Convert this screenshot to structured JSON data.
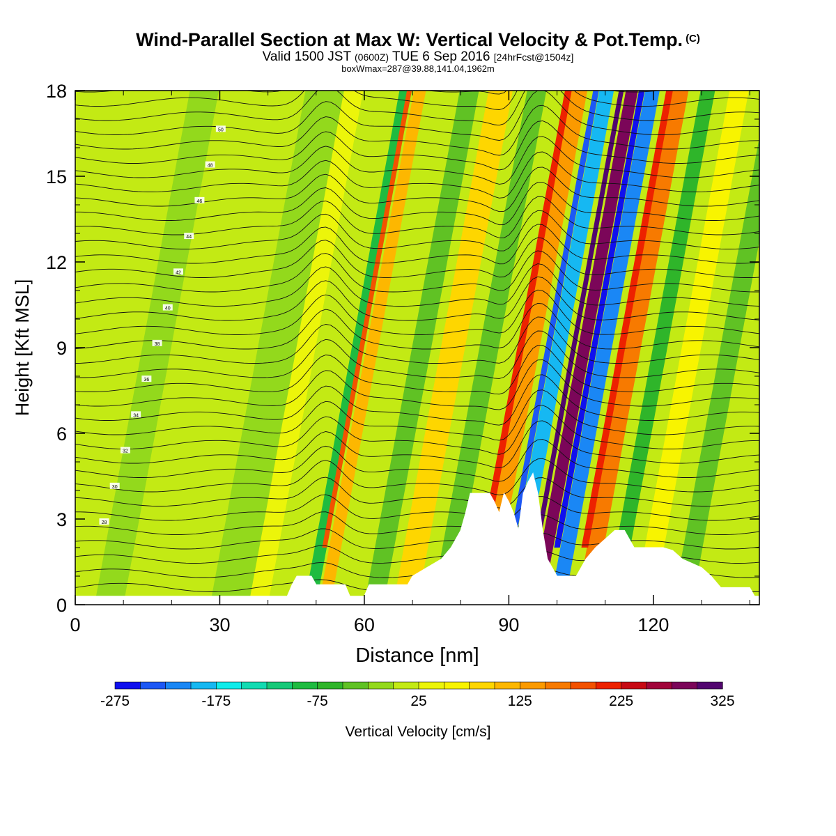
{
  "title": {
    "main": "Wind-Parallel Section at Max W: Vertical Velocity & Pot.Temp.",
    "copyright": "(C)",
    "valid_prefix": "Valid 1500 JST",
    "zulu": "(0600Z)",
    "valid_date": "TUE 6 Sep 2016",
    "forecast": "[24hrFcst@1504z]",
    "box": "boxWmax=287@39.88,141.04,1962m"
  },
  "chart_data": {
    "type": "heatmap",
    "xlabel": "Distance [nm]",
    "ylabel": "Height [Kft MSL]",
    "xlim": [
      0,
      142
    ],
    "ylim": [
      0,
      18
    ],
    "x_ticks": [
      "0",
      "30",
      "60",
      "90",
      "120"
    ],
    "y_ticks": [
      "0",
      "3",
      "6",
      "9",
      "12",
      "15",
      "18"
    ],
    "colorbar": {
      "label": "Vertical Velocity [cm/s]",
      "min": -275,
      "max": 325,
      "step": 25,
      "tick_labels": [
        "-275",
        "-175",
        "-75",
        "25",
        "125",
        "225",
        "325"
      ],
      "colors": [
        "#1010ee",
        "#1d58f5",
        "#1a87f5",
        "#16b8f2",
        "#10ecea",
        "#12dbb2",
        "#17c978",
        "#1fbb40",
        "#2fb52a",
        "#60c224",
        "#93d91c",
        "#c3ea14",
        "#ecf50a",
        "#f8f400",
        "#fed600",
        "#fdb700",
        "#fb9a00",
        "#f77a00",
        "#f35200",
        "#ed2200",
        "#c70a14",
        "#a1053a",
        "#7b0659",
        "#52066f"
      ]
    },
    "terrain_kft": [
      [
        0,
        0.3
      ],
      [
        44,
        0.3
      ],
      [
        45,
        0.7
      ],
      [
        46,
        1.0
      ],
      [
        49,
        1.0
      ],
      [
        50,
        0.7
      ],
      [
        56,
        0.7
      ],
      [
        57,
        0.3
      ],
      [
        60,
        0.3
      ],
      [
        61,
        0.7
      ],
      [
        69,
        0.7
      ],
      [
        70,
        1.0
      ],
      [
        73,
        1.3
      ],
      [
        76,
        1.6
      ],
      [
        78,
        2.0
      ],
      [
        80,
        2.6
      ],
      [
        81,
        3.2
      ],
      [
        82,
        3.9
      ],
      [
        86,
        3.9
      ],
      [
        87,
        3.6
      ],
      [
        88,
        3.2
      ],
      [
        89,
        3.9
      ],
      [
        90,
        3.6
      ],
      [
        91,
        3.2
      ],
      [
        92,
        2.6
      ],
      [
        93,
        3.9
      ],
      [
        94,
        4.3
      ],
      [
        95,
        4.6
      ],
      [
        96,
        3.9
      ],
      [
        97,
        2.6
      ],
      [
        98,
        1.6
      ],
      [
        99,
        1.3
      ],
      [
        100,
        1.0
      ],
      [
        104,
        1.0
      ],
      [
        105,
        1.3
      ],
      [
        106,
        1.6
      ],
      [
        108,
        2.0
      ],
      [
        110,
        2.3
      ],
      [
        112,
        2.6
      ],
      [
        114,
        2.6
      ],
      [
        115,
        2.3
      ],
      [
        116,
        2.0
      ],
      [
        122,
        2.0
      ],
      [
        124,
        1.9
      ],
      [
        126,
        1.6
      ],
      [
        130,
        1.3
      ],
      [
        132,
        1.0
      ],
      [
        134,
        0.6
      ],
      [
        140,
        0.6
      ],
      [
        141,
        0.3
      ],
      [
        142,
        0.3
      ]
    ],
    "w_bands_cms": [
      {
        "x": 4,
        "w": 6,
        "value": -20
      },
      {
        "x": 28,
        "w": 12,
        "value": -20
      },
      {
        "x": 36,
        "w": 4,
        "value": 40
      },
      {
        "x": 47.5,
        "w": 2.5,
        "value": -90
      },
      {
        "x": 50.5,
        "w": 2.5,
        "value": 120
      },
      {
        "x": 60,
        "w": 4,
        "value": -40
      },
      {
        "x": 66,
        "w": 5,
        "value": 90
      },
      {
        "x": 74,
        "w": 4,
        "value": -30
      },
      {
        "x": 83,
        "w": 3.5,
        "value": 140
      },
      {
        "x": 89,
        "w": 3,
        "value": -190
      },
      {
        "x": 94.5,
        "w": 2.5,
        "value": 287
      },
      {
        "x": 98.5,
        "w": 3,
        "value": -220
      },
      {
        "x": 104,
        "w": 3.5,
        "value": 150
      },
      {
        "x": 110,
        "w": 3,
        "value": -60
      },
      {
        "x": 116,
        "w": 4,
        "value": 60
      },
      {
        "x": 124,
        "w": 4,
        "value": -40
      },
      {
        "x": 134,
        "w": 5,
        "value": 20
      }
    ],
    "theta_labels": [
      "28",
      "30",
      "32",
      "34",
      "36",
      "38",
      "40",
      "42",
      "44",
      "46",
      "48",
      "50"
    ]
  }
}
